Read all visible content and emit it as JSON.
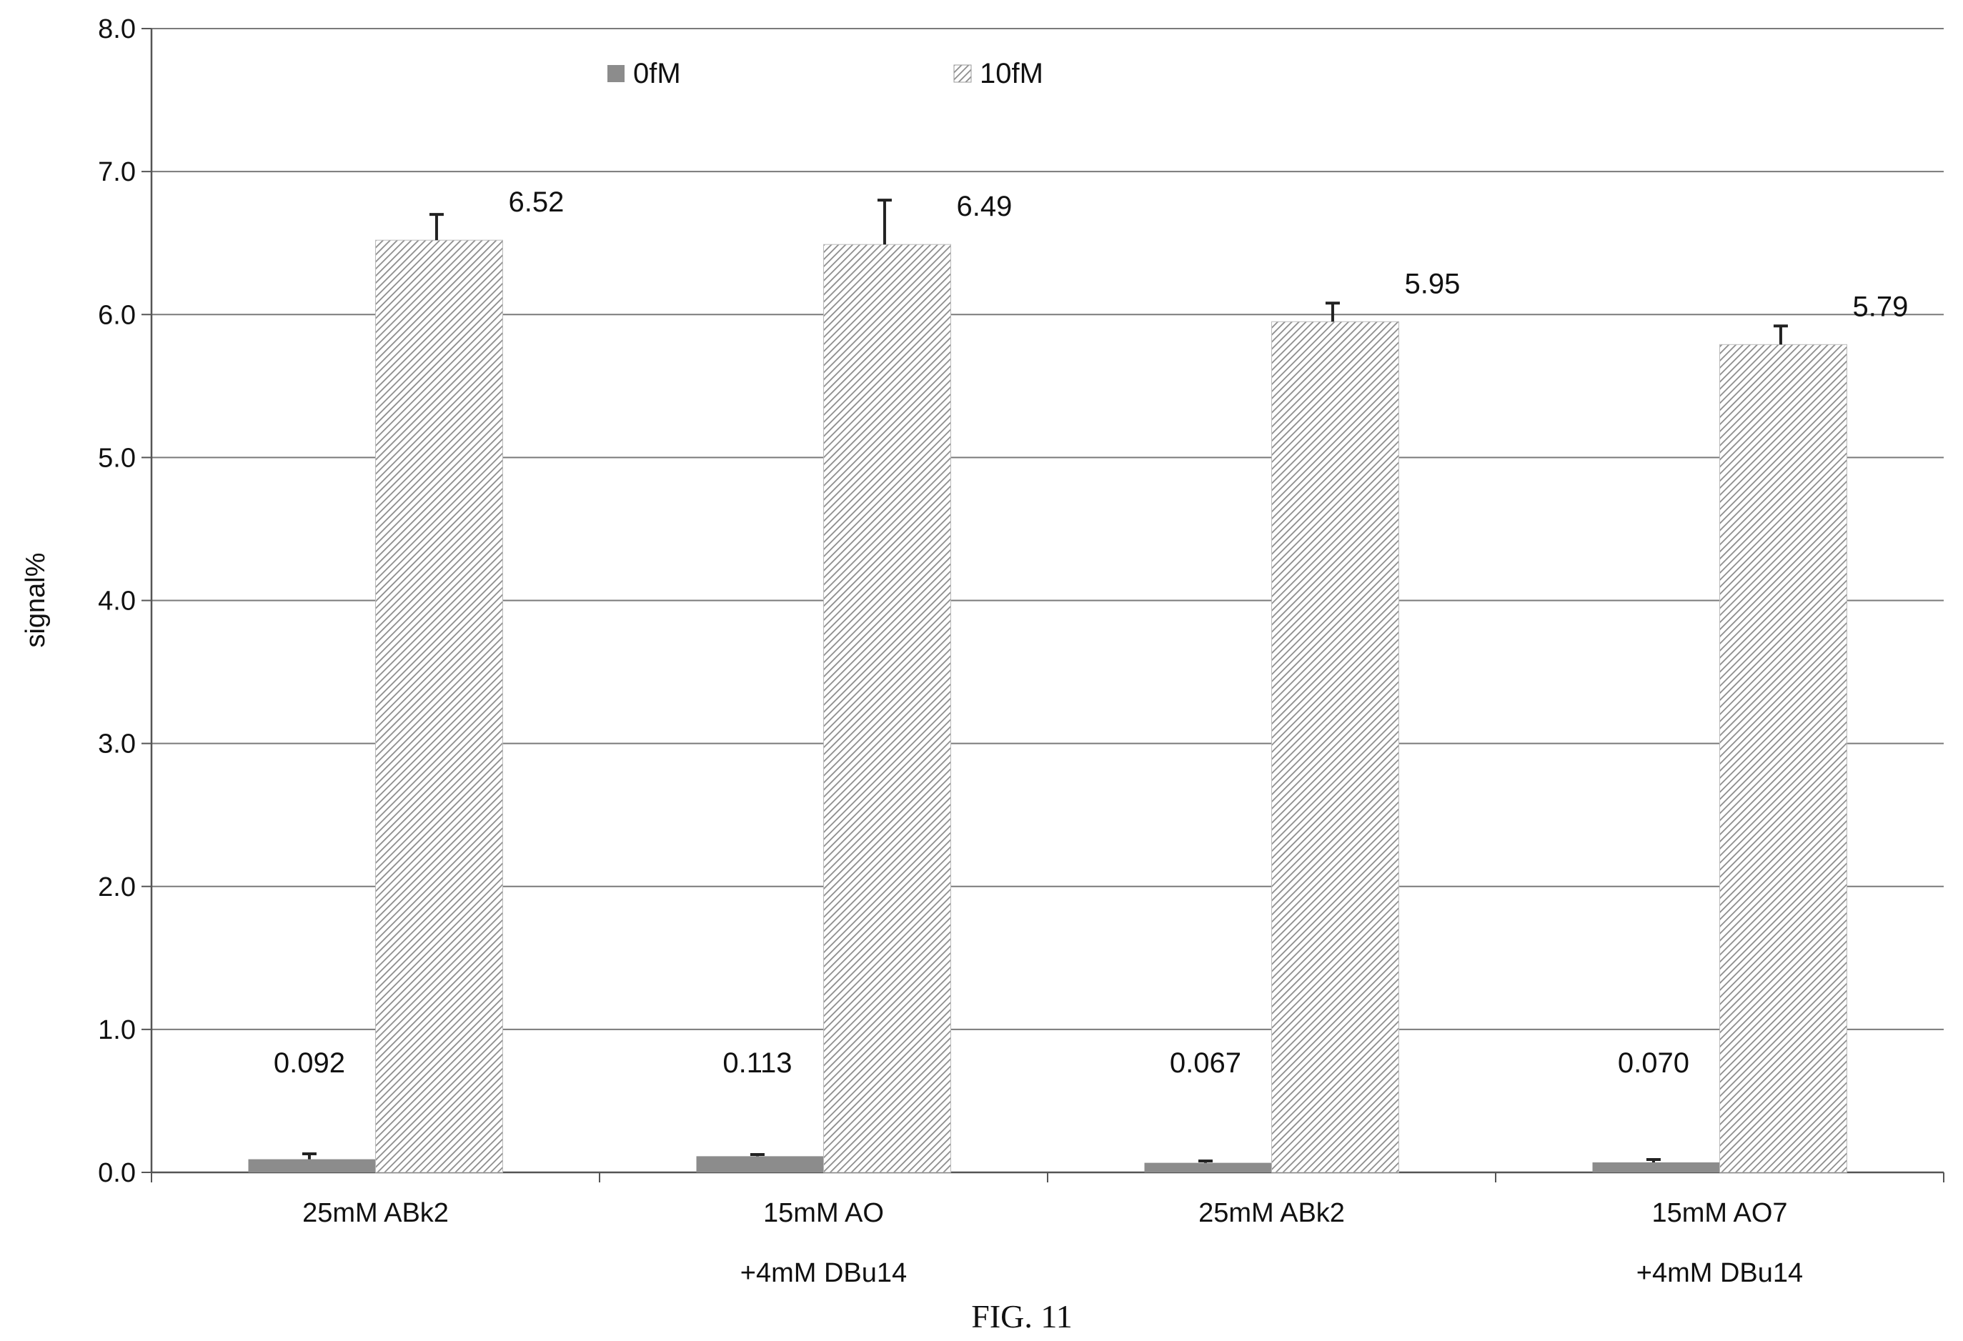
{
  "chart_data": {
    "type": "bar",
    "ylabel": "signal%",
    "ylim": [
      0,
      8
    ],
    "yticks": [
      "0.0",
      "1.0",
      "2.0",
      "3.0",
      "4.0",
      "5.0",
      "6.0",
      "7.0",
      "8.0"
    ],
    "grid": true,
    "legend_position": "top",
    "categories": [
      [
        "25mM ABk2"
      ],
      [
        "15mM AO",
        "+4mM DBu14"
      ],
      [
        "25mM ABk2"
      ],
      [
        "15mM AO7",
        "+4mM DBu14"
      ]
    ],
    "series": [
      {
        "name": "0fM",
        "values": [
          0.092,
          0.113,
          0.067,
          0.07
        ],
        "labels": [
          "0.092",
          "0.113",
          "0.067",
          "0.070"
        ],
        "error_upper": [
          0.13,
          0.125,
          0.08,
          0.09
        ],
        "color": "#8c8c8c",
        "pattern": "solid"
      },
      {
        "name": "10fM",
        "values": [
          6.52,
          6.49,
          5.95,
          5.79
        ],
        "labels": [
          "6.52",
          "6.49",
          "5.95",
          "5.79"
        ],
        "error_upper": [
          6.7,
          6.8,
          6.08,
          5.92
        ],
        "color": "#9a9a9a",
        "pattern": "hatch"
      }
    ],
    "caption": "FIG. 11"
  }
}
